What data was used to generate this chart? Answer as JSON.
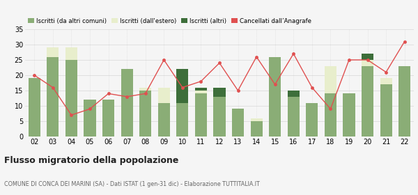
{
  "years": [
    "02",
    "03",
    "04",
    "05",
    "06",
    "07",
    "08",
    "09",
    "10",
    "11",
    "12",
    "13",
    "14",
    "15",
    "16",
    "17",
    "18",
    "19",
    "20",
    "21",
    "22"
  ],
  "iscritti_comuni": [
    19,
    26,
    25,
    12,
    12,
    22,
    15,
    11,
    11,
    14,
    13,
    9,
    5,
    26,
    13,
    11,
    14,
    14,
    23,
    17,
    23
  ],
  "iscritti_estero": [
    0,
    3,
    4,
    0,
    0,
    0,
    1,
    5,
    0,
    1,
    0,
    0,
    1,
    0,
    0,
    0,
    9,
    0,
    2,
    2,
    0
  ],
  "iscritti_altri": [
    0,
    0,
    0,
    0,
    0,
    0,
    0,
    0,
    11,
    1,
    3,
    0,
    0,
    0,
    2,
    0,
    0,
    0,
    2,
    0,
    0
  ],
  "cancellati": [
    20,
    16,
    7,
    9,
    14,
    13,
    14,
    25,
    16,
    18,
    24,
    15,
    26,
    17,
    27,
    16,
    9,
    25,
    25,
    21,
    31
  ],
  "color_comuni": "#8aad76",
  "color_estero": "#e8eecc",
  "color_altri": "#3d6e3a",
  "color_cancellati": "#e05050",
  "ylim": [
    0,
    35
  ],
  "yticks": [
    0,
    5,
    10,
    15,
    20,
    25,
    30,
    35
  ],
  "title": "Flusso migratorio della popolazione",
  "subtitle": "COMUNE DI CONCA DEI MARINI (SA) - Dati ISTAT (1 gen-31 dic) - Elaborazione TUTTITALIA.IT",
  "legend_labels": [
    "Iscritti (da altri comuni)",
    "Iscritti (dall'estero)",
    "Iscritti (altri)",
    "Cancellati dall’Anagrafe"
  ],
  "background_color": "#f5f5f5",
  "grid_color": "#d8d8d8"
}
